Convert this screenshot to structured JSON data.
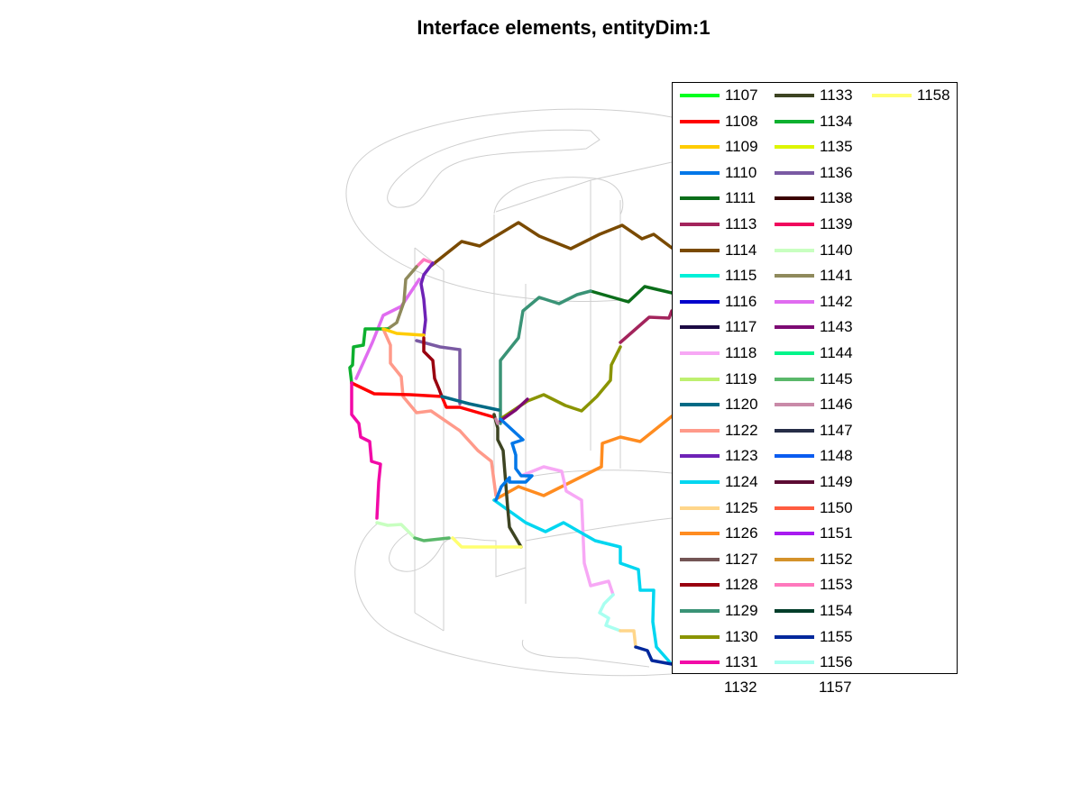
{
  "figure": {
    "title": "Interface elements, entityDim:1"
  },
  "legend": {
    "columns": [
      [
        {
          "label": "1107",
          "color": "#00ff1e"
        },
        {
          "label": "1108",
          "color": "#ff0000"
        },
        {
          "label": "1109",
          "color": "#ffcc00"
        },
        {
          "label": "1110",
          "color": "#0077e8"
        },
        {
          "label": "1111",
          "color": "#0b6e1a"
        },
        {
          "label": "1113",
          "color": "#a3245c"
        },
        {
          "label": "1114",
          "color": "#7a4a00"
        },
        {
          "label": "1115",
          "color": "#00f0d8"
        },
        {
          "label": "1116",
          "color": "#0000cc"
        },
        {
          "label": "1117",
          "color": "#1c0a44"
        },
        {
          "label": "1118",
          "color": "#f7a8f5"
        },
        {
          "label": "1119",
          "color": "#bef070"
        },
        {
          "label": "1120",
          "color": "#006a85"
        },
        {
          "label": "1122",
          "color": "#ff9a8a"
        },
        {
          "label": "1123",
          "color": "#6e22b6"
        },
        {
          "label": "1124",
          "color": "#00d6f0"
        },
        {
          "label": "1125",
          "color": "#ffd68a"
        },
        {
          "label": "1126",
          "color": "#ff8c20"
        },
        {
          "label": "1127",
          "color": "#735555"
        },
        {
          "label": "1128",
          "color": "#99000f"
        },
        {
          "label": "1129",
          "color": "#3a9376"
        },
        {
          "label": "1130",
          "color": "#8a9400"
        },
        {
          "label": "1131",
          "color": "#f20aa7"
        }
      ],
      [
        {
          "label": "1133",
          "color": "#3d4422"
        },
        {
          "label": "1134",
          "color": "#0db02f"
        },
        {
          "label": "1135",
          "color": "#ddf500"
        },
        {
          "label": "1136",
          "color": "#7a5aa3"
        },
        {
          "label": "1138",
          "color": "#3a0000"
        },
        {
          "label": "1139",
          "color": "#f0075d"
        },
        {
          "label": "1140",
          "color": "#c8ffc0"
        },
        {
          "label": "1141",
          "color": "#8f8a5c"
        },
        {
          "label": "1142",
          "color": "#e06cf0"
        },
        {
          "label": "1143",
          "color": "#7d0a73"
        },
        {
          "label": "1144",
          "color": "#00f58a"
        },
        {
          "label": "1145",
          "color": "#5ab86a"
        },
        {
          "label": "1146",
          "color": "#c98aa8"
        },
        {
          "label": "1147",
          "color": "#262d47"
        },
        {
          "label": "1148",
          "color": "#0a5cf0"
        },
        {
          "label": "1149",
          "color": "#5c0a33"
        },
        {
          "label": "1150",
          "color": "#ff5c40"
        },
        {
          "label": "1151",
          "color": "#a81af0"
        },
        {
          "label": "1152",
          "color": "#d4922a"
        },
        {
          "label": "1153",
          "color": "#ff78bd"
        },
        {
          "label": "1154",
          "color": "#003d2a"
        },
        {
          "label": "1155",
          "color": "#00289c"
        },
        {
          "label": "1156",
          "color": "#a8fff0"
        }
      ],
      [
        {
          "label": "1158",
          "color": "#ffff70"
        }
      ]
    ],
    "overflow_labels": [
      "1132",
      "1157"
    ]
  },
  "curves": [
    {
      "id": "1114",
      "color": "#7a4a00"
    },
    {
      "id": "1111",
      "color": "#0b6e1a"
    },
    {
      "id": "1129",
      "color": "#3a9376"
    },
    {
      "id": "1113",
      "color": "#a3245c"
    },
    {
      "id": "1130",
      "color": "#8a9400"
    },
    {
      "id": "1126",
      "color": "#ff8c20"
    },
    {
      "id": "1122",
      "color": "#ff9a8a"
    },
    {
      "id": "1118",
      "color": "#f7a8f5"
    },
    {
      "id": "1124",
      "color": "#00d6f0"
    },
    {
      "id": "1153",
      "color": "#ff78bd"
    },
    {
      "id": "1123",
      "color": "#6e22b6"
    },
    {
      "id": "1142",
      "color": "#e06cf0"
    },
    {
      "id": "1141",
      "color": "#8f8a5c"
    },
    {
      "id": "1134",
      "color": "#0db02f"
    },
    {
      "id": "1109",
      "color": "#ffcc00"
    },
    {
      "id": "1136",
      "color": "#7a5aa3"
    },
    {
      "id": "1128",
      "color": "#99000f"
    },
    {
      "id": "1108",
      "color": "#ff0000"
    },
    {
      "id": "1120",
      "color": "#006a85"
    },
    {
      "id": "1143",
      "color": "#7d0a73"
    },
    {
      "id": "1133",
      "color": "#3d4422"
    },
    {
      "id": "1110",
      "color": "#0077e8"
    },
    {
      "id": "1131",
      "color": "#f20aa7"
    },
    {
      "id": "1140",
      "color": "#c8ffc0"
    },
    {
      "id": "1145",
      "color": "#5ab86a"
    },
    {
      "id": "1158",
      "color": "#ffff70"
    },
    {
      "id": "1156",
      "color": "#a8fff0"
    },
    {
      "id": "1125",
      "color": "#ffd68a"
    },
    {
      "id": "1155",
      "color": "#00289c"
    },
    {
      "id": "1146",
      "color": "#c98aa8"
    }
  ]
}
